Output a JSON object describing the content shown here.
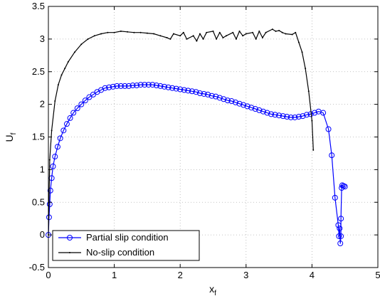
{
  "chart_data": {
    "type": "line",
    "title": "",
    "xlabel": "x",
    "xlabel_sub": "f",
    "ylabel": "U",
    "ylabel_sub": "f",
    "xlim": [
      0,
      5
    ],
    "ylim": [
      -0.5,
      3.5
    ],
    "x_ticks": [
      0,
      1,
      2,
      3,
      4,
      5
    ],
    "y_ticks": [
      -0.5,
      0,
      0.5,
      1,
      1.5,
      2,
      2.5,
      3,
      3.5
    ],
    "x_tick_labels": [
      "0",
      "1",
      "2",
      "3",
      "4",
      "5"
    ],
    "y_tick_labels": [
      "-0.5",
      "0",
      "0.5",
      "1",
      "1.5",
      "2",
      "2.5",
      "3",
      "3.5"
    ],
    "grid": true,
    "legend_position": "bottom-left",
    "series": [
      {
        "name": "Partial slip condition",
        "color": "#0000ff",
        "marker": "circle",
        "x": [
          0.0,
          0.01,
          0.02,
          0.03,
          0.05,
          0.07,
          0.1,
          0.14,
          0.18,
          0.23,
          0.28,
          0.33,
          0.38,
          0.44,
          0.5,
          0.56,
          0.62,
          0.68,
          0.74,
          0.8,
          0.86,
          0.92,
          0.98,
          1.04,
          1.1,
          1.16,
          1.22,
          1.28,
          1.34,
          1.4,
          1.46,
          1.52,
          1.58,
          1.64,
          1.7,
          1.76,
          1.82,
          1.88,
          1.94,
          2.0,
          2.06,
          2.12,
          2.18,
          2.24,
          2.3,
          2.36,
          2.42,
          2.48,
          2.54,
          2.6,
          2.66,
          2.72,
          2.78,
          2.84,
          2.9,
          2.96,
          3.02,
          3.08,
          3.14,
          3.2,
          3.26,
          3.32,
          3.38,
          3.44,
          3.5,
          3.56,
          3.62,
          3.68,
          3.74,
          3.8,
          3.86,
          3.92,
          3.98,
          4.04,
          4.1,
          4.17,
          4.25,
          4.3,
          4.35,
          4.4,
          4.41,
          4.42,
          4.43,
          4.44,
          4.44,
          4.45,
          4.46,
          4.48,
          4.5
        ],
        "y": [
          0.0,
          0.27,
          0.47,
          0.68,
          0.87,
          1.05,
          1.2,
          1.35,
          1.48,
          1.6,
          1.7,
          1.79,
          1.87,
          1.94,
          2.0,
          2.06,
          2.11,
          2.15,
          2.19,
          2.22,
          2.25,
          2.26,
          2.27,
          2.28,
          2.28,
          2.28,
          2.28,
          2.29,
          2.29,
          2.3,
          2.3,
          2.3,
          2.3,
          2.29,
          2.28,
          2.27,
          2.26,
          2.25,
          2.24,
          2.23,
          2.22,
          2.21,
          2.2,
          2.19,
          2.17,
          2.16,
          2.15,
          2.13,
          2.12,
          2.1,
          2.08,
          2.06,
          2.05,
          2.03,
          2.01,
          1.99,
          1.97,
          1.95,
          1.93,
          1.91,
          1.89,
          1.87,
          1.85,
          1.84,
          1.83,
          1.82,
          1.81,
          1.8,
          1.8,
          1.81,
          1.82,
          1.84,
          1.85,
          1.87,
          1.89,
          1.87,
          1.62,
          1.22,
          0.57,
          0.15,
          -0.02,
          0.1,
          -0.13,
          -0.02,
          0.25,
          0.72,
          0.76,
          0.75,
          0.74
        ]
      },
      {
        "name": "No-slip condition",
        "color": "#000000",
        "marker": "dot",
        "x": [
          0.0,
          0.02,
          0.05,
          0.1,
          0.15,
          0.2,
          0.25,
          0.3,
          0.4,
          0.5,
          0.6,
          0.7,
          0.8,
          0.9,
          1.0,
          1.1,
          1.2,
          1.3,
          1.4,
          1.5,
          1.6,
          1.7,
          1.8,
          1.85,
          1.9,
          2.0,
          2.05,
          2.1,
          2.2,
          2.25,
          2.3,
          2.35,
          2.4,
          2.5,
          2.55,
          2.6,
          2.65,
          2.7,
          2.8,
          2.85,
          2.9,
          2.95,
          3.0,
          3.1,
          3.15,
          3.2,
          3.25,
          3.3,
          3.4,
          3.45,
          3.5,
          3.55,
          3.6,
          3.7,
          3.75,
          3.8,
          3.85,
          3.9,
          3.95,
          4.0,
          4.02
        ],
        "y": [
          0.0,
          1.15,
          1.6,
          2.05,
          2.3,
          2.45,
          2.55,
          2.65,
          2.8,
          2.92,
          3.0,
          3.05,
          3.08,
          3.1,
          3.1,
          3.12,
          3.11,
          3.1,
          3.1,
          3.09,
          3.08,
          3.05,
          3.02,
          3.0,
          3.08,
          3.05,
          3.1,
          3.0,
          3.05,
          2.97,
          3.08,
          3.0,
          3.1,
          3.12,
          3.0,
          3.1,
          3.02,
          3.05,
          3.1,
          3.0,
          3.12,
          3.05,
          3.08,
          3.1,
          3.0,
          3.12,
          3.02,
          3.1,
          3.15,
          3.12,
          3.13,
          3.1,
          3.08,
          3.07,
          3.1,
          2.95,
          2.8,
          2.55,
          2.2,
          1.75,
          1.3
        ]
      }
    ]
  }
}
